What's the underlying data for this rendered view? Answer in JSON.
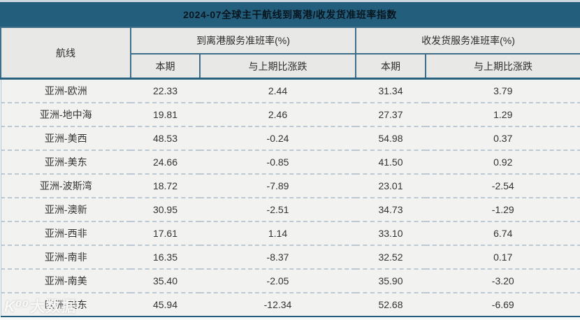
{
  "title": "2024-07全球主干航线到离港/收发货准班率指数",
  "table": {
    "route_header": "航线",
    "groups": [
      {
        "label": "到离港服务准班率(%)",
        "sub": [
          "本期",
          "与上期比涨跌"
        ]
      },
      {
        "label": "收发货服务准班率(%)",
        "sub": [
          "本期",
          "与上期比涨跌"
        ]
      }
    ],
    "rows": [
      {
        "route": "亚洲-欧洲",
        "dep_current": "22.33",
        "dep_change": "2.44",
        "cargo_current": "31.34",
        "cargo_change": "3.79"
      },
      {
        "route": "亚洲-地中海",
        "dep_current": "19.81",
        "dep_change": "2.46",
        "cargo_current": "27.37",
        "cargo_change": "1.29"
      },
      {
        "route": "亚洲-美西",
        "dep_current": "48.53",
        "dep_change": "-0.24",
        "cargo_current": "54.98",
        "cargo_change": "0.37"
      },
      {
        "route": "亚洲-美东",
        "dep_current": "24.66",
        "dep_change": "-0.85",
        "cargo_current": "41.50",
        "cargo_change": "0.92"
      },
      {
        "route": "亚洲-波斯湾",
        "dep_current": "18.72",
        "dep_change": "-7.89",
        "cargo_current": "23.01",
        "cargo_change": "-2.54"
      },
      {
        "route": "亚洲-澳新",
        "dep_current": "30.95",
        "dep_change": "-2.51",
        "cargo_current": "34.73",
        "cargo_change": "-1.29"
      },
      {
        "route": "亚洲-西非",
        "dep_current": "17.61",
        "dep_change": "1.14",
        "cargo_current": "33.10",
        "cargo_change": "6.74"
      },
      {
        "route": "亚洲-南非",
        "dep_current": "16.35",
        "dep_change": "-8.37",
        "cargo_current": "32.52",
        "cargo_change": "0.17"
      },
      {
        "route": "亚洲-南美",
        "dep_current": "35.40",
        "dep_change": "-2.05",
        "cargo_current": "35.90",
        "cargo_change": "-3.20"
      },
      {
        "route": "欧洲-美东",
        "dep_current": "45.94",
        "dep_change": "-12.34",
        "cargo_current": "52.68",
        "cargo_change": "-6.69"
      }
    ]
  },
  "watermark": {
    "logo": "K⁰⁰",
    "text": "大数据"
  },
  "colors": {
    "title_band_bg": "#245e7d",
    "header_border": "#3f6e8b",
    "header_cell_bg": "#e8e8e6",
    "row_bg": "#f2f2f0",
    "row_separator": "#bcc9d3",
    "title_text": "#07161f",
    "body_text": "#333333"
  },
  "chart_data": {
    "type": "table",
    "title": "2024-07全球主干航线到离港/收发货准班率指数",
    "columns": [
      "航线",
      "到离港服务准班率(%) 本期",
      "到离港服务准班率(%) 与上期比涨跌",
      "收发货服务准班率(%) 本期",
      "收发货服务准班率(%) 与上期比涨跌"
    ],
    "rows": [
      [
        "亚洲-欧洲",
        22.33,
        2.44,
        31.34,
        3.79
      ],
      [
        "亚洲-地中海",
        19.81,
        2.46,
        27.37,
        1.29
      ],
      [
        "亚洲-美西",
        48.53,
        -0.24,
        54.98,
        0.37
      ],
      [
        "亚洲-美东",
        24.66,
        -0.85,
        41.5,
        0.92
      ],
      [
        "亚洲-波斯湾",
        18.72,
        -7.89,
        23.01,
        -2.54
      ],
      [
        "亚洲-澳新",
        30.95,
        -2.51,
        34.73,
        -1.29
      ],
      [
        "亚洲-西非",
        17.61,
        1.14,
        33.1,
        6.74
      ],
      [
        "亚洲-南非",
        16.35,
        -8.37,
        32.52,
        0.17
      ],
      [
        "亚洲-南美",
        35.4,
        -2.05,
        35.9,
        -3.2
      ],
      [
        "欧洲-美东",
        45.94,
        -12.34,
        52.68,
        -6.69
      ]
    ]
  }
}
